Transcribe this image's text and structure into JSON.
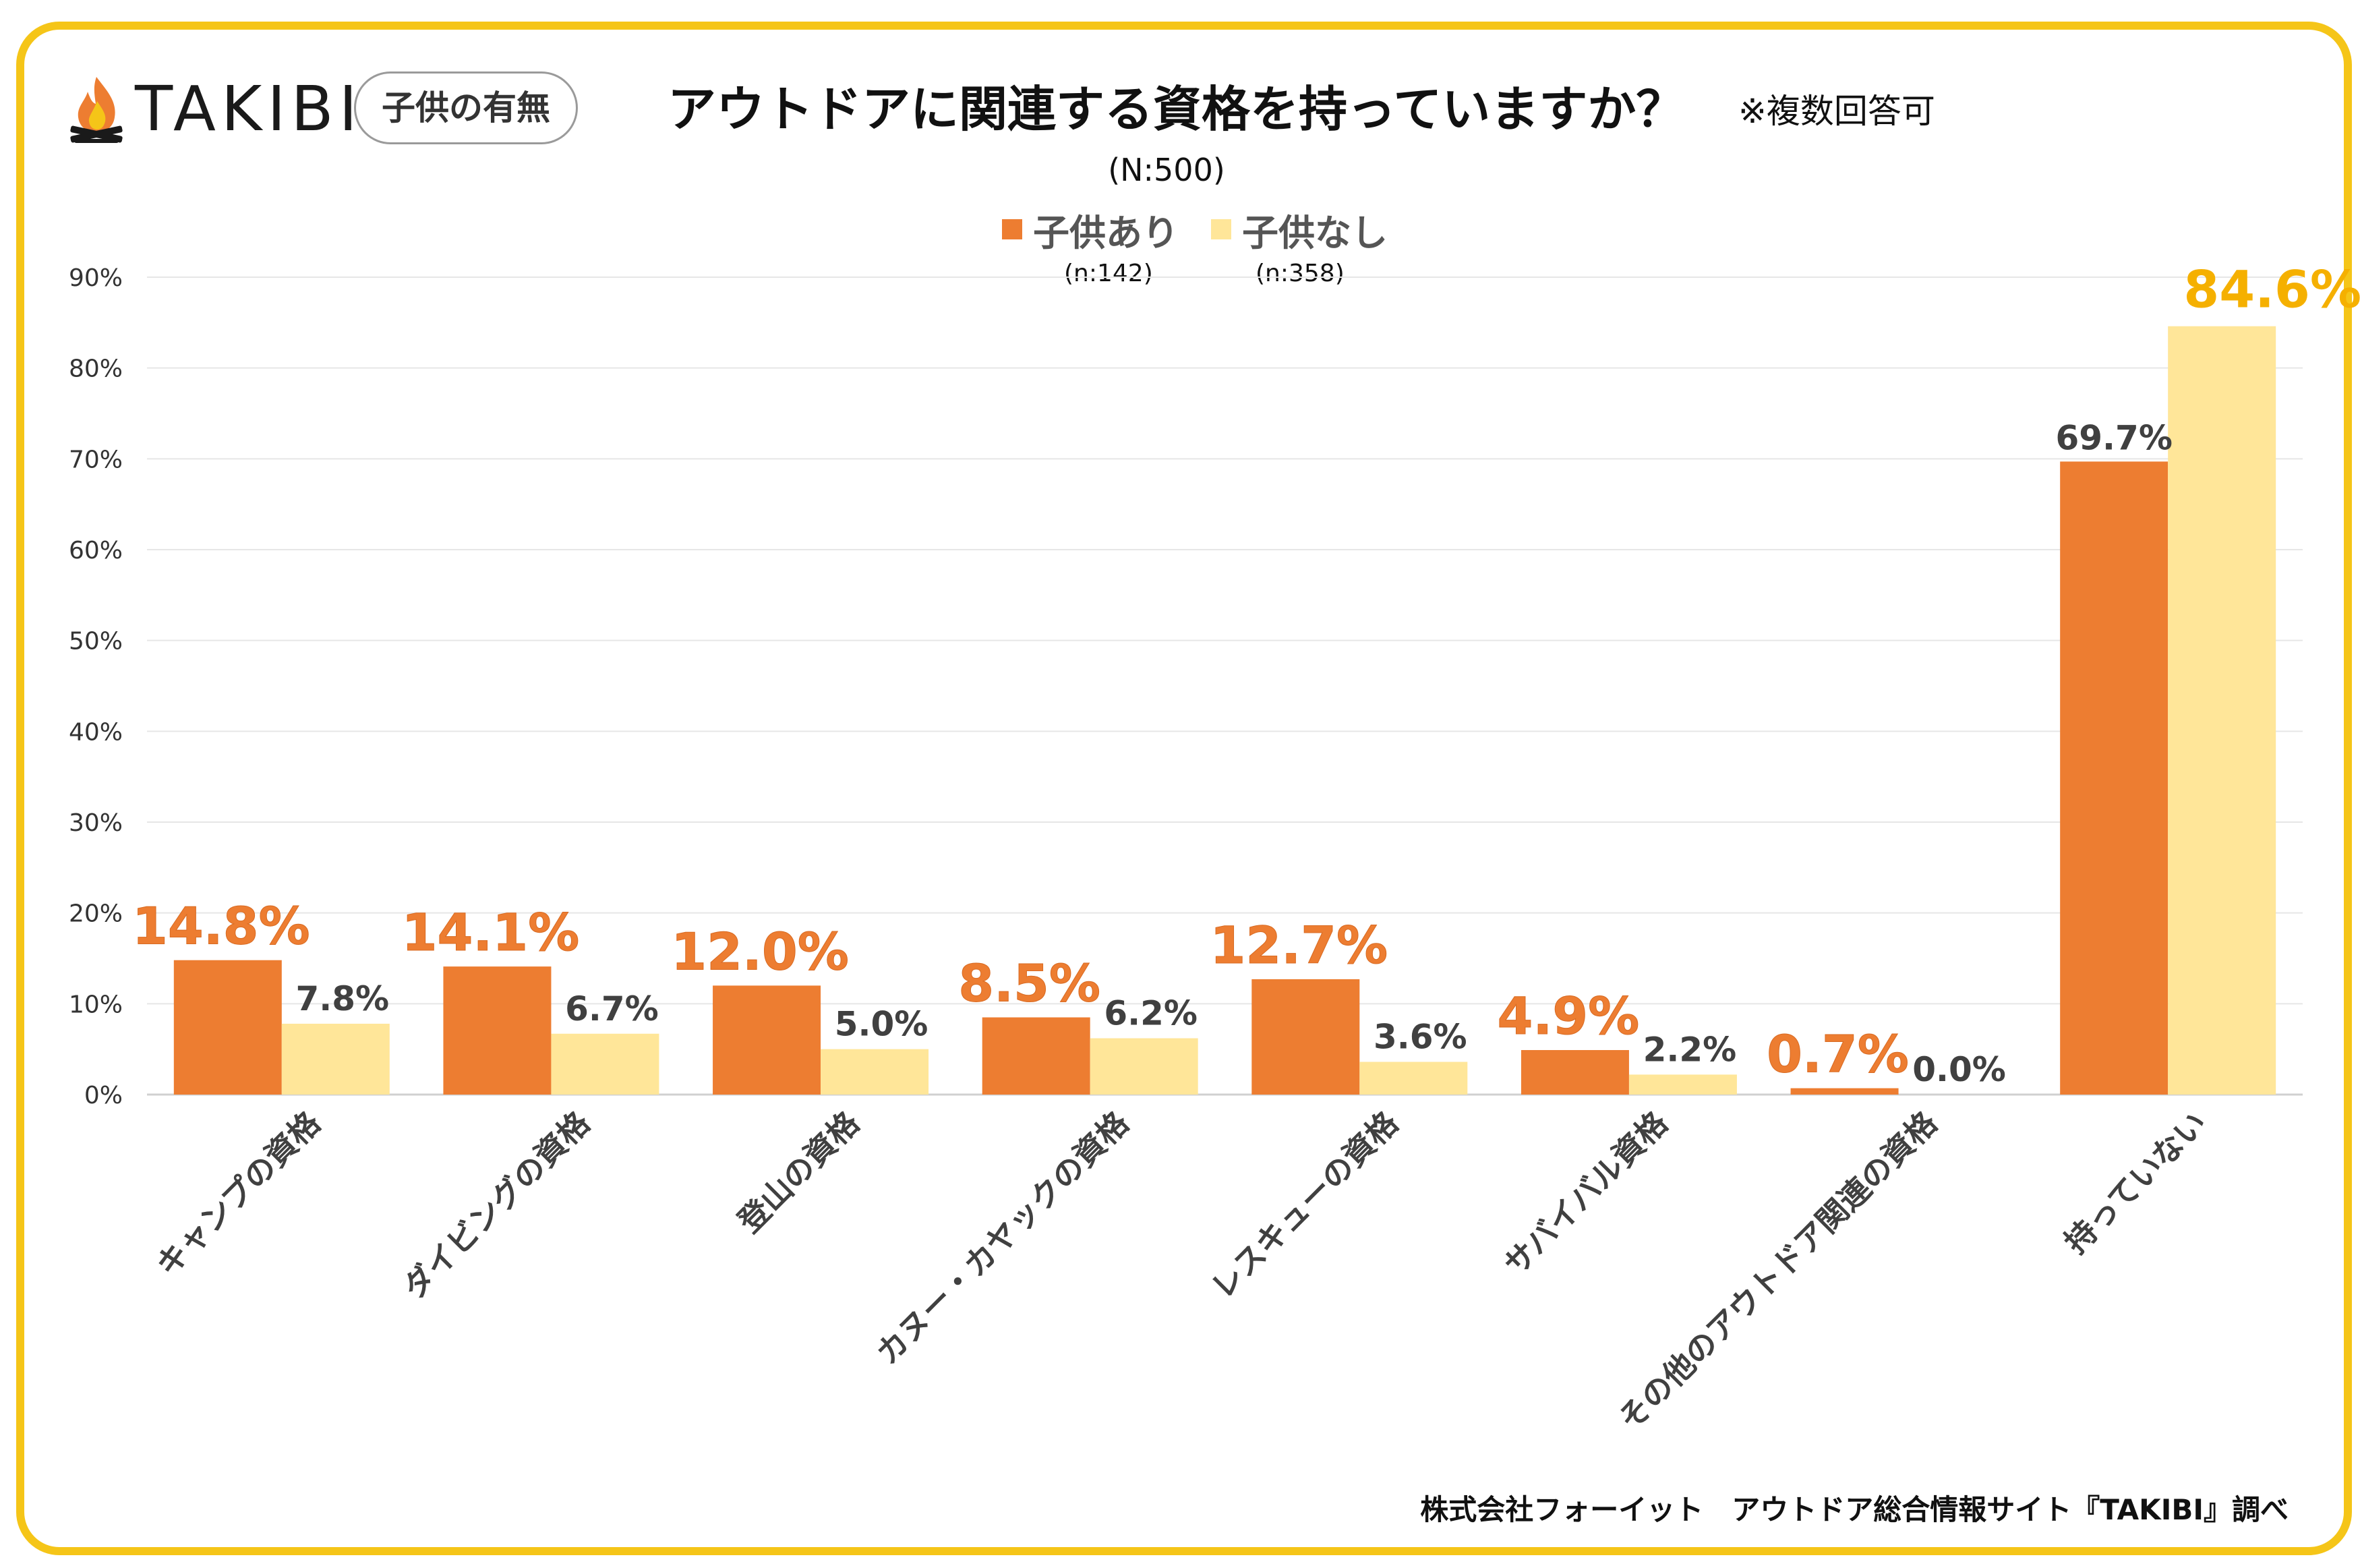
{
  "brand": {
    "name": "TAKIBI",
    "tag": "子供の有無"
  },
  "header": {
    "title": "アウトドアに関連する資格を持っていますか？",
    "note": "※複数回答可",
    "sample": "(N:500)"
  },
  "footer": {
    "credit": "株式会社フォーイット　アウトドア総合情報サイト『TAKIBI』調べ"
  },
  "colors": {
    "with_children": "#ED7D31",
    "without_children": "#FFE699",
    "frame": "#F5C518",
    "highlight_label": "#F5B000"
  },
  "chart_data": {
    "type": "bar",
    "title": "アウトドアに関連する資格を持っていますか？",
    "xlabel": "",
    "ylabel": "",
    "ylim": [
      0,
      90
    ],
    "yticks": [
      "0%",
      "10%",
      "20%",
      "30%",
      "40%",
      "50%",
      "60%",
      "70%",
      "80%",
      "90%"
    ],
    "grid": true,
    "legend_position": "top-center",
    "categories": [
      "キャンプの資格",
      "ダイビングの資格",
      "登山の資格",
      "カヌー・カヤックの資格",
      "レスキューの資格",
      "サバイバル資格",
      "その他のアウトドア関連の資格",
      "持っていない"
    ],
    "series": [
      {
        "name": "子供あり",
        "n": "(n:142)",
        "values": [
          14.8,
          14.1,
          12.0,
          8.5,
          12.7,
          4.9,
          0.7,
          69.7
        ],
        "labels": [
          "14.8%",
          "14.1%",
          "12.0%",
          "8.5%",
          "12.7%",
          "4.9%",
          "0.7%",
          "69.7%"
        ]
      },
      {
        "name": "子供なし",
        "n": "(n:358)",
        "values": [
          7.8,
          6.7,
          5.0,
          6.2,
          3.6,
          2.2,
          0.0,
          84.6
        ],
        "labels": [
          "7.8%",
          "6.7%",
          "5.0%",
          "6.2%",
          "3.6%",
          "2.2%",
          "0.0%",
          "84.6%"
        ]
      }
    ]
  }
}
